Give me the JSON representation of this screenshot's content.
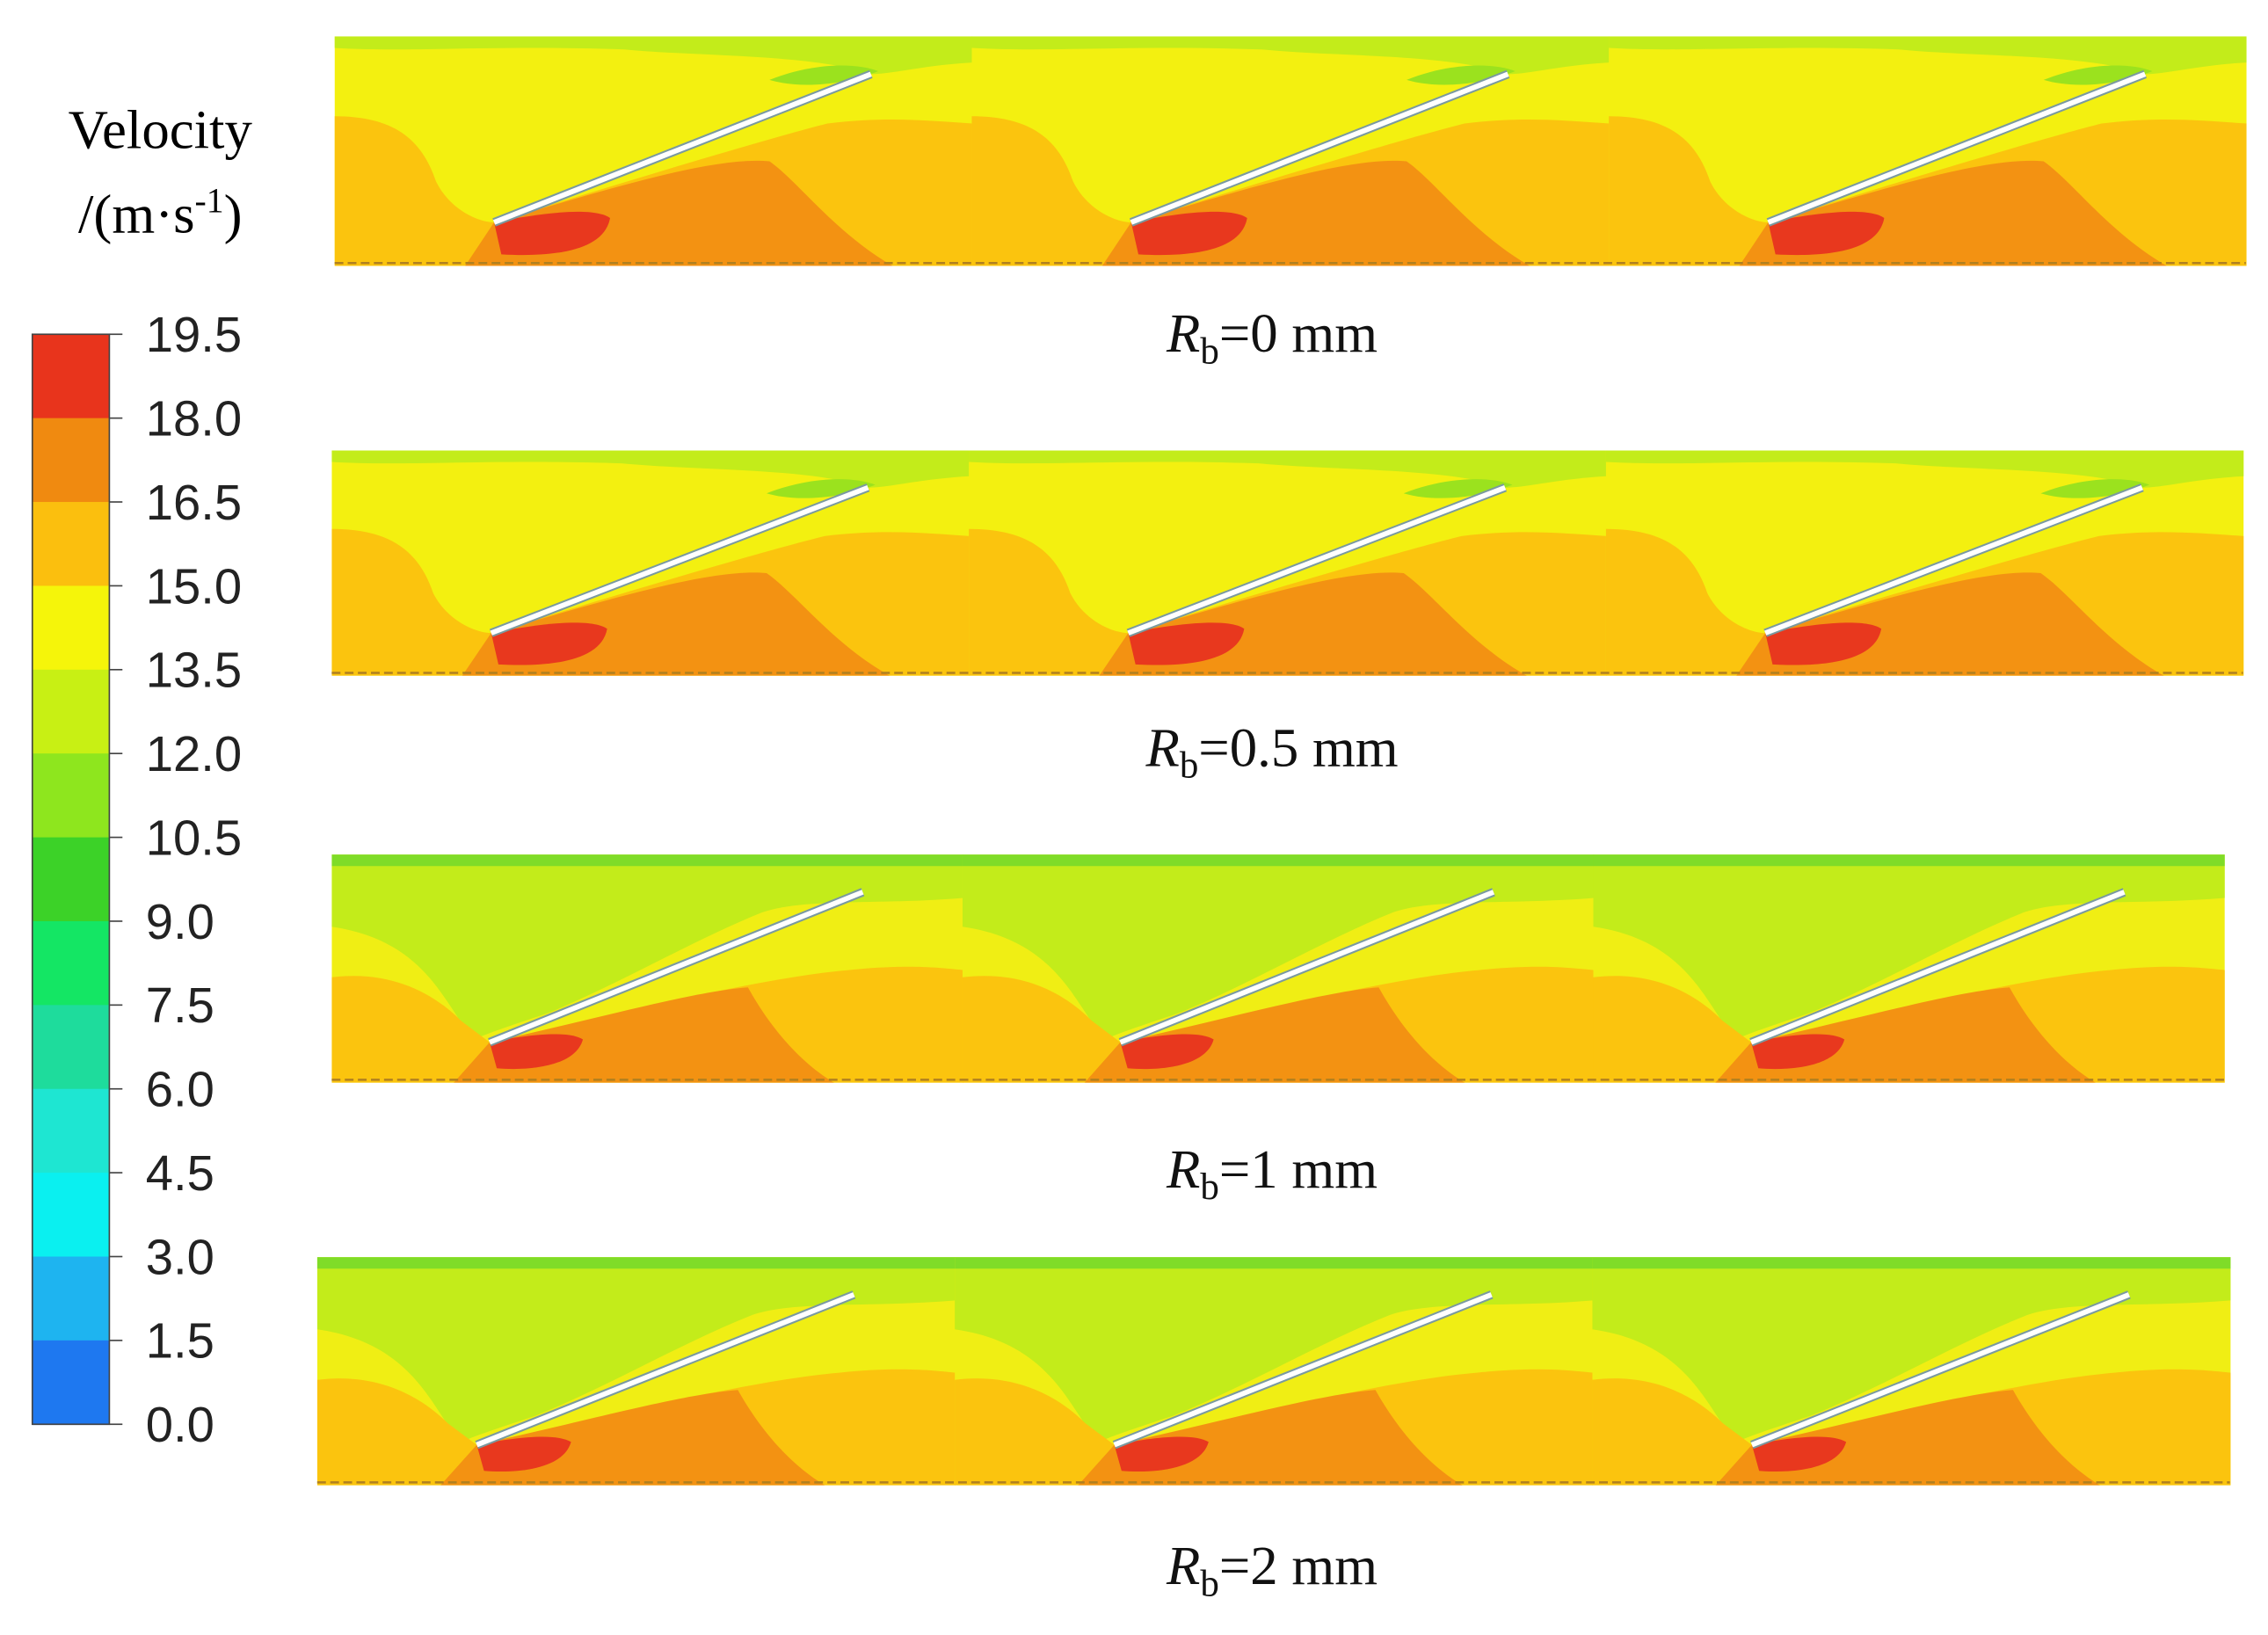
{
  "legend": {
    "title": "Velocity",
    "unit_prefix": "/(m·s",
    "unit_exponent": "-1",
    "unit_suffix": ")",
    "ticks": [
      "19.5",
      "18.0",
      "16.5",
      "15.0",
      "13.5",
      "12.0",
      "10.5",
      "9.0",
      "7.5",
      "6.0",
      "4.5",
      "3.0",
      "1.5",
      "0.0"
    ]
  },
  "panels": [
    {
      "symbol": "R",
      "subscript": "b",
      "text": "=0 mm"
    },
    {
      "symbol": "R",
      "subscript": "b",
      "text": "=0.5 mm"
    },
    {
      "symbol": "R",
      "subscript": "b",
      "text": "=1 mm"
    },
    {
      "symbol": "R",
      "subscript": "b",
      "text": "=2 mm"
    }
  ]
}
